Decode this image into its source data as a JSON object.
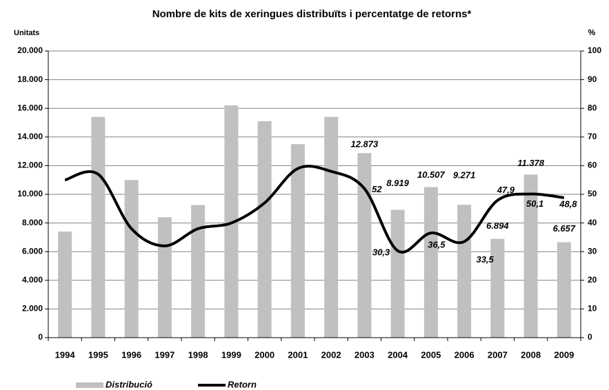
{
  "chart_data": {
    "type": "bar_line",
    "title": "Nombre de kits de xeringues distribuïts i percentatge de retorns*",
    "y_label": "Unitats",
    "y2_label": "%",
    "categories": [
      "1994",
      "1995",
      "1996",
      "1997",
      "1998",
      "1999",
      "2000",
      "2001",
      "2002",
      "2003",
      "2004",
      "2005",
      "2006",
      "2007",
      "2008",
      "2009"
    ],
    "series": [
      {
        "name": "Distribució",
        "type": "bar",
        "color": "#c0c0c0",
        "values": [
          7400,
          15400,
          11000,
          8400,
          9250,
          16200,
          15100,
          13500,
          15400,
          12873,
          8919,
          10507,
          9271,
          6894,
          11378,
          6657
        ],
        "value_labels": [
          null,
          null,
          null,
          null,
          null,
          null,
          null,
          null,
          null,
          "12.873",
          "8.919",
          "10.507",
          "9.271",
          "6.894",
          "11.378",
          "6.657"
        ]
      },
      {
        "name": "Retorn",
        "type": "line",
        "color": "#000000",
        "axis": "y2",
        "values": [
          55,
          57,
          38,
          32,
          38,
          40,
          47,
          59,
          58,
          52,
          30.3,
          36.5,
          33.5,
          47.9,
          50.1,
          48.8
        ],
        "value_labels": [
          null,
          null,
          null,
          null,
          null,
          null,
          null,
          null,
          null,
          "52",
          "30,3",
          "36,5",
          "33,5",
          "47,9",
          "50,1",
          "48,8"
        ]
      }
    ],
    "ylim": [
      0,
      20000
    ],
    "yticks": [
      {
        "value": 0,
        "label": "0"
      },
      {
        "value": 2000,
        "label": "2.000"
      },
      {
        "value": 4000,
        "label": "4.000"
      },
      {
        "value": 6000,
        "label": "6.000"
      },
      {
        "value": 8000,
        "label": "8.000"
      },
      {
        "value": 10000,
        "label": "10.000"
      },
      {
        "value": 12000,
        "label": "12.000"
      },
      {
        "value": 14000,
        "label": "14.000"
      },
      {
        "value": 16000,
        "label": "16.000"
      },
      {
        "value": 18000,
        "label": "18.000"
      },
      {
        "value": 20000,
        "label": "20.000"
      }
    ],
    "y2lim": [
      0,
      100
    ],
    "y2ticks": [
      0,
      10,
      20,
      30,
      40,
      50,
      60,
      70,
      80,
      90,
      100
    ],
    "grid": true,
    "legend": "bottom"
  }
}
